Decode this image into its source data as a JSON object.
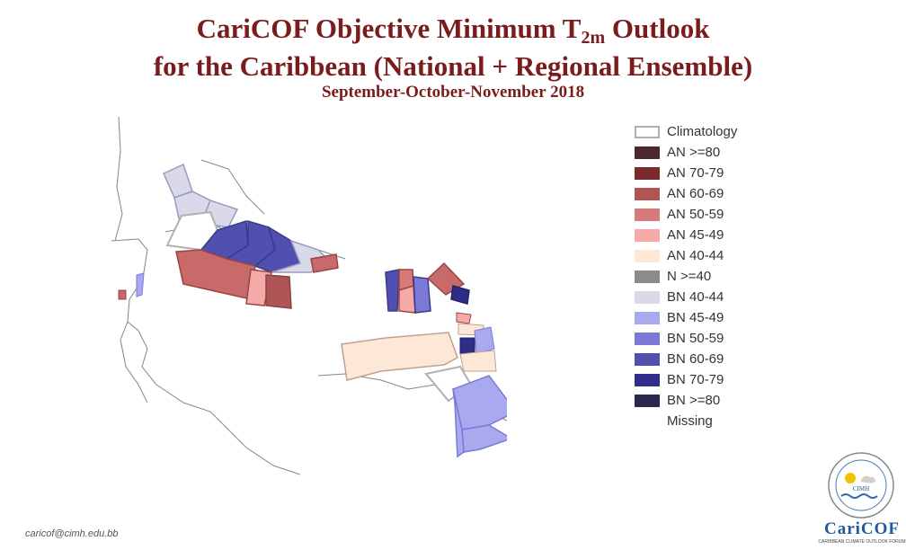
{
  "title": {
    "line1_main": "CariCOF Objective Minimum T",
    "line1_sub": "2m",
    "line1_end": " Outlook",
    "line2": "for the Caribbean (National + Regional Ensemble)",
    "season": "September-October-November 2018"
  },
  "legend": [
    {
      "label": "Climatology",
      "color": "#ffffff",
      "border": "#b0b0b0"
    },
    {
      "label": "AN  >=80",
      "color": "#4a2a2e"
    },
    {
      "label": "AN 70-79",
      "color": "#7a2a2a"
    },
    {
      "label": "AN 60-69",
      "color": "#b05555"
    },
    {
      "label": "AN 50-59",
      "color": "#d67a7a"
    },
    {
      "label": "AN 45-49",
      "color": "#f5aaaa"
    },
    {
      "label": "AN 40-44",
      "color": "#fde8d8"
    },
    {
      "label": "N >=40",
      "color": "#8c8c8c"
    },
    {
      "label": "BN 40-44",
      "color": "#d9d9ea"
    },
    {
      "label": "BN 45-49",
      "color": "#a9a9f0"
    },
    {
      "label": "BN 50-59",
      "color": "#7a7ad6"
    },
    {
      "label": "BN 60-69",
      "color": "#5050b0"
    },
    {
      "label": "BN 70-79",
      "color": "#2e2e88"
    },
    {
      "label": "BN  >=80",
      "color": "#2a2a50"
    },
    {
      "label": "Missing",
      "color": "",
      "border": ""
    }
  ],
  "footer": {
    "email": "caricof@cimh.edu.bb",
    "logo_text": "CariCOF",
    "logo_sub": "CARIBBEAN CLIMATE OUTLOOK FORUM",
    "seal_text": "CIMH"
  }
}
